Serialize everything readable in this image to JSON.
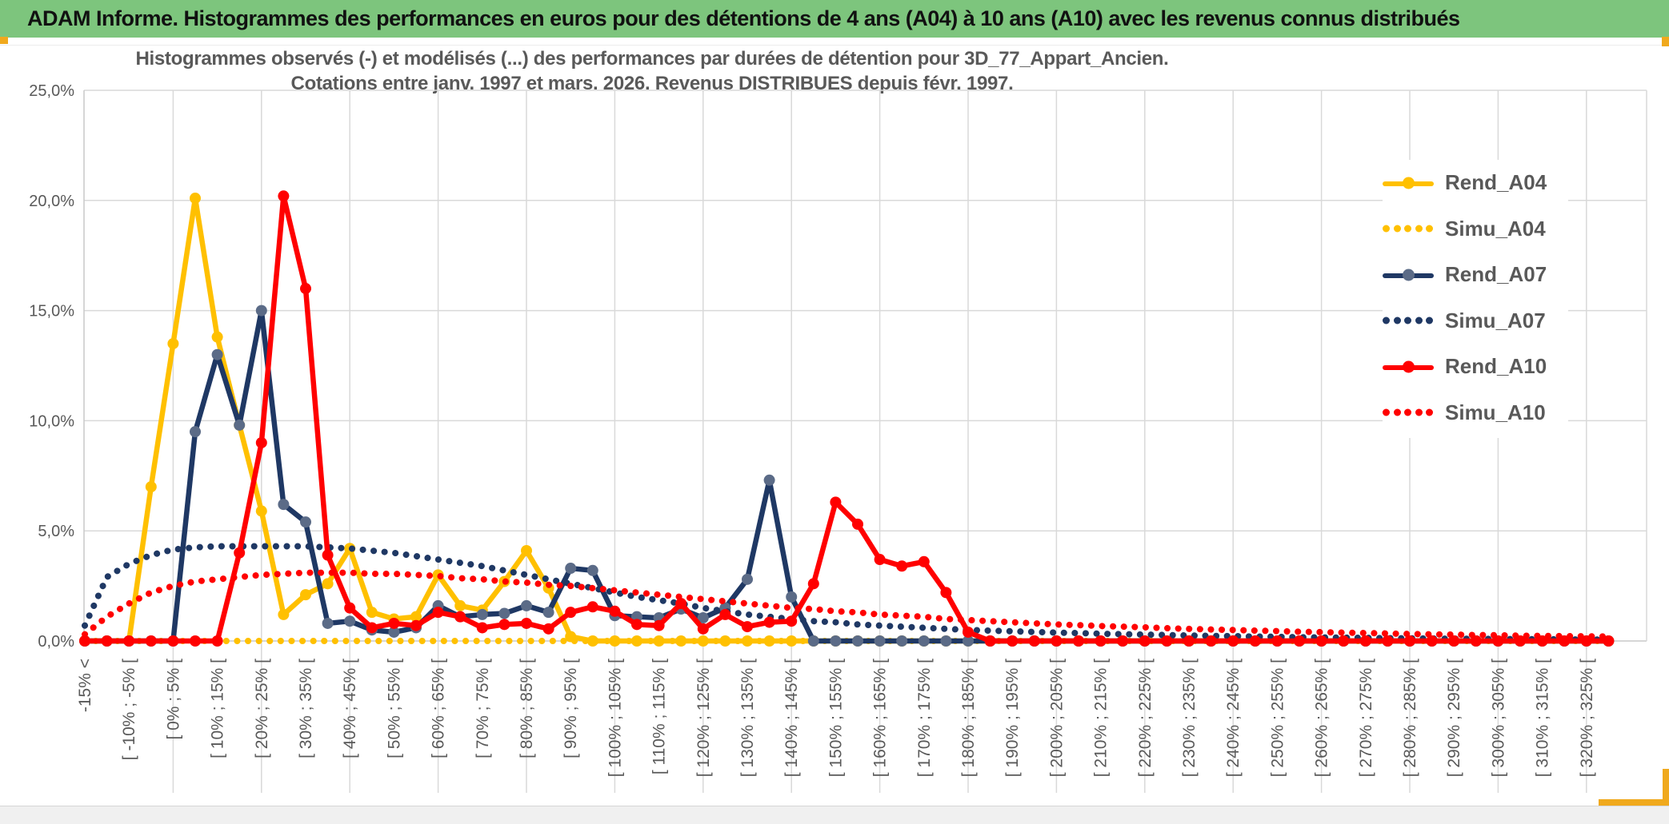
{
  "header": {
    "title": "ADAM Informe. Histogrammes des performances en euros pour des détentions de 4 ans (A04) à 10 ans (A10) avec les revenus connus distribués",
    "background_color": "#7dc57d",
    "accent_color": "#f0a91d"
  },
  "chart": {
    "title_line1": "Histogrammes observés (-) et modélisés (...) des performances par durées de détention pour 3D_77_Appart_Ancien.",
    "title_line2": "Cotations entre janv. 1997 et mars. 2026. Revenus DISTRIBUES depuis févr. 1997.",
    "legend": [
      {
        "label": "Rend_A04",
        "color": "#FFC000",
        "marker_color": "#FFC000",
        "style": "solid"
      },
      {
        "label": "Simu_A04",
        "color": "#FFC000",
        "marker_color": "#FFC000",
        "style": "dotted"
      },
      {
        "label": "Rend_A07",
        "color": "#1F3864",
        "marker_color": "#5B6B87",
        "style": "solid"
      },
      {
        "label": "Simu_A07",
        "color": "#1F3864",
        "marker_color": "#1F3864",
        "style": "dotted"
      },
      {
        "label": "Rend_A10",
        "color": "#FF0000",
        "marker_color": "#FF0000",
        "style": "solid"
      },
      {
        "label": "Simu_A10",
        "color": "#FF0000",
        "marker_color": "#FF0000",
        "style": "dotted"
      }
    ]
  },
  "chart_data": {
    "type": "line",
    "title": "Histogrammes observés (-) et modélisés (...) des performances par durées de détention pour 3D_77_Appart_Ancien. Cotations entre janv. 1997 et mars. 2026. Revenus DISTRIBUES depuis févr. 1997.",
    "xlabel": "",
    "ylabel": "",
    "ylim": [
      0,
      25
    ],
    "grid": true,
    "legend_position": "right",
    "y_tick_labels": [
      "25,0%",
      "20,0%",
      "15,0%",
      "10,0%",
      "5,0%",
      "0,0%"
    ],
    "y_tick_values": [
      25,
      20,
      15,
      10,
      5,
      0
    ],
    "n_bins": 70,
    "bin_width_percent": 5,
    "label_every_n_bins": 2,
    "categories_labeled": [
      "-15% <",
      "[ -10% ; -5% [",
      "[ 0% ; 5% [",
      "[ 10% ; 15% [",
      "[ 20% ; 25% [",
      "[ 30% ; 35% [",
      "[ 40% ; 45% [",
      "[ 50% ; 55% [",
      "[ 60% ; 65% [",
      "[ 70% ; 75% [",
      "[ 80% ; 85% [",
      "[ 90% ; 95% [",
      "[ 100% ; 105% [",
      "[ 110% ; 115% [",
      "[ 120% ; 125% [",
      "[ 130% ; 135% [",
      "[ 140% ; 145% [",
      "[ 150% ; 155% [",
      "[ 160% ; 165% [",
      "[ 170% ; 175% [",
      "[ 180% ; 185% [",
      "[ 190% ; 195% [",
      "[ 200% ; 205% [",
      "[ 210% ; 215% [",
      "[ 220% ; 225% [",
      "[ 230% ; 235% [",
      "[ 240% ; 245% [",
      "[ 250% ; 255% [",
      "[ 260% ; 265% [",
      "[ 270% ; 275% [",
      "[ 280% ; 285% [",
      "[ 290% ; 295% [",
      "[ 300% ; 305% [",
      "[ 310% ; 315% [",
      "[ 320% ; 325% ["
    ],
    "series": [
      {
        "name": "Rend_A04",
        "style": "solid",
        "color": "#FFC000",
        "marker_color": "#FFC000",
        "values": [
          0,
          0,
          0,
          7.0,
          13.5,
          20.1,
          13.8,
          9.8,
          5.9,
          1.2,
          2.1,
          2.6,
          4.2,
          1.3,
          1.0,
          1.1,
          3.0,
          1.6,
          1.4,
          2.7,
          4.1,
          2.4,
          0.2,
          0,
          0,
          0,
          0,
          0,
          0,
          0,
          0,
          0,
          0,
          0,
          0,
          0,
          0,
          0,
          0,
          0,
          0,
          0,
          0,
          0,
          0,
          0,
          0,
          0,
          0,
          0,
          0,
          0,
          0,
          0,
          0,
          0,
          0,
          0,
          0,
          0,
          0,
          0,
          0,
          0,
          0,
          0,
          0,
          0,
          0,
          0
        ]
      },
      {
        "name": "Simu_A04",
        "style": "dotted",
        "color": "#FFC000",
        "marker_color": "#FFC000",
        "values": [
          0,
          0,
          0,
          0,
          0,
          0,
          0,
          0,
          0,
          0,
          0,
          0,
          0,
          0,
          0,
          0,
          0,
          0,
          0,
          0,
          0,
          0,
          0,
          0,
          0,
          0,
          0,
          0,
          0,
          0,
          0,
          0,
          0,
          0,
          0,
          0,
          0,
          0,
          0,
          0,
          0,
          0,
          0,
          0,
          0,
          0,
          0,
          0,
          0,
          0,
          0,
          0,
          0,
          0,
          0,
          0,
          0,
          0,
          0,
          0,
          0,
          0,
          0,
          0,
          0,
          0,
          0,
          0,
          0,
          0
        ]
      },
      {
        "name": "Rend_A07",
        "style": "solid",
        "color": "#1F3864",
        "marker_color": "#5B6B87",
        "values": [
          0,
          0,
          0,
          0,
          0,
          9.5,
          13.0,
          9.8,
          15.0,
          6.2,
          5.4,
          0.8,
          0.9,
          0.5,
          0.4,
          0.6,
          1.6,
          1.1,
          1.2,
          1.25,
          1.6,
          1.3,
          3.3,
          3.2,
          1.15,
          1.1,
          1.05,
          1.45,
          1.05,
          1.5,
          2.8,
          7.3,
          2.0,
          0,
          0,
          0,
          0,
          0,
          0,
          0,
          0,
          0,
          0,
          0,
          0,
          0,
          0,
          0,
          0,
          0,
          0,
          0,
          0,
          0,
          0,
          0,
          0,
          0,
          0,
          0,
          0,
          0,
          0,
          0,
          0,
          0,
          0,
          0,
          0,
          0
        ]
      },
      {
        "name": "Simu_A07",
        "style": "dotted",
        "color": "#1F3864",
        "marker_color": "#1F3864",
        "values": [
          0.7,
          2.9,
          3.5,
          3.9,
          4.15,
          4.25,
          4.3,
          4.3,
          4.3,
          4.3,
          4.3,
          4.25,
          4.2,
          4.1,
          4.0,
          3.85,
          3.7,
          3.55,
          3.4,
          3.2,
          3.0,
          2.8,
          2.6,
          2.4,
          2.2,
          2.0,
          1.85,
          1.7,
          1.5,
          1.35,
          1.2,
          1.1,
          1.0,
          0.9,
          0.85,
          0.75,
          0.7,
          0.65,
          0.6,
          0.55,
          0.5,
          0.47,
          0.44,
          0.41,
          0.38,
          0.36,
          0.33,
          0.31,
          0.29,
          0.27,
          0.25,
          0.23,
          0.22,
          0.2,
          0.19,
          0.17,
          0.16,
          0.15,
          0.14,
          0.13,
          0.12,
          0.11,
          0.1,
          0.1,
          0.09,
          0.08,
          0.08,
          0.07,
          0.07,
          0.06
        ]
      },
      {
        "name": "Rend_A10",
        "style": "solid",
        "color": "#FF0000",
        "marker_color": "#FF0000",
        "values": [
          0,
          0,
          0,
          0,
          0,
          0,
          0,
          4.0,
          9.0,
          20.2,
          16.0,
          3.9,
          1.5,
          0.6,
          0.8,
          0.7,
          1.3,
          1.1,
          0.6,
          0.75,
          0.8,
          0.55,
          1.3,
          1.55,
          1.35,
          0.75,
          0.7,
          1.7,
          0.55,
          1.2,
          0.65,
          0.85,
          0.9,
          2.6,
          6.3,
          5.3,
          3.7,
          3.4,
          3.6,
          2.2,
          0.4,
          0,
          0,
          0,
          0,
          0,
          0,
          0,
          0,
          0,
          0,
          0,
          0,
          0,
          0,
          0,
          0,
          0,
          0,
          0,
          0,
          0,
          0,
          0,
          0,
          0,
          0,
          0,
          0,
          0
        ]
      },
      {
        "name": "Simu_A10",
        "style": "dotted",
        "color": "#FF0000",
        "marker_color": "#FF0000",
        "values": [
          0.3,
          1.1,
          1.7,
          2.2,
          2.5,
          2.7,
          2.8,
          2.9,
          3.0,
          3.05,
          3.1,
          3.1,
          3.1,
          3.05,
          3.05,
          3.0,
          2.95,
          2.85,
          2.8,
          2.7,
          2.65,
          2.55,
          2.5,
          2.4,
          2.3,
          2.2,
          2.1,
          2.0,
          1.9,
          1.8,
          1.7,
          1.6,
          1.5,
          1.45,
          1.35,
          1.3,
          1.2,
          1.15,
          1.1,
          1.0,
          0.95,
          0.9,
          0.85,
          0.8,
          0.75,
          0.72,
          0.68,
          0.65,
          0.62,
          0.58,
          0.55,
          0.52,
          0.5,
          0.47,
          0.45,
          0.42,
          0.4,
          0.38,
          0.36,
          0.34,
          0.32,
          0.3,
          0.29,
          0.27,
          0.26,
          0.24,
          0.23,
          0.22,
          0.21,
          0.2
        ]
      }
    ]
  }
}
